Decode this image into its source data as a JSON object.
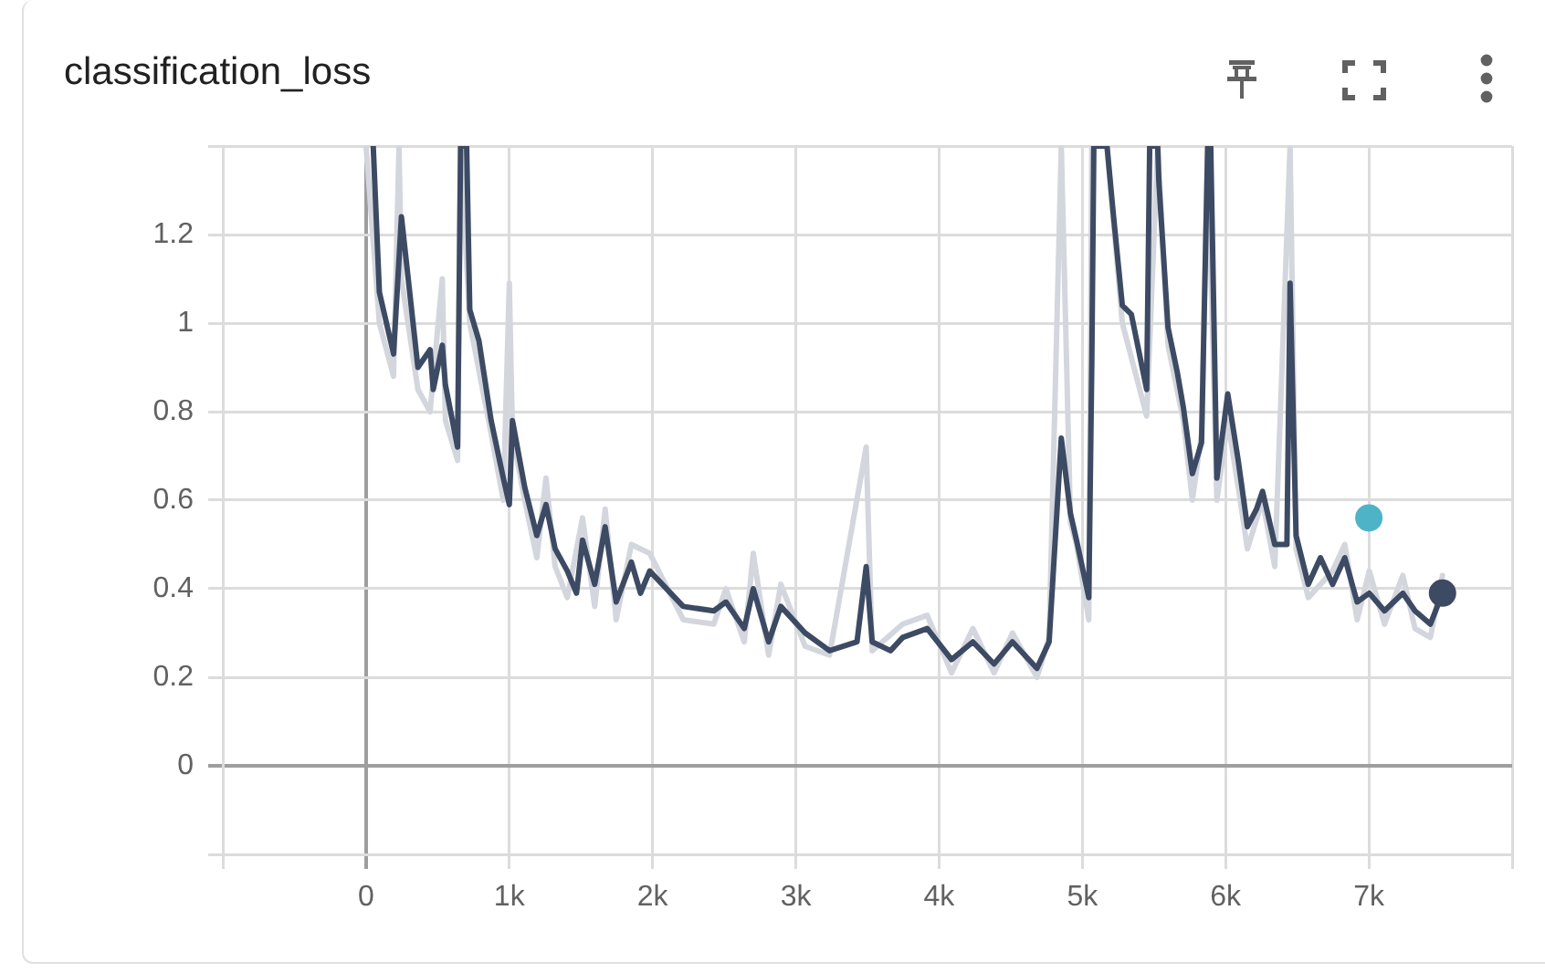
{
  "chart_data": {
    "type": "line",
    "title": "classification_loss",
    "xlim": [
      -1000,
      8000
    ],
    "xticks": [
      {
        "value": -1000,
        "label": null
      },
      0,
      {
        "value": 1000,
        "label": "1k"
      },
      {
        "value": 2000,
        "label": "2k"
      },
      {
        "value": 3000,
        "label": "3k"
      },
      {
        "value": 4000,
        "label": "4k"
      },
      {
        "value": 5000,
        "label": "5k"
      },
      {
        "value": 6000,
        "label": "6k"
      },
      {
        "value": 7000,
        "label": "7k"
      },
      {
        "value": 8000,
        "label": null
      }
    ],
    "ylim": [
      -0.2,
      1.4
    ],
    "yticks": [
      {
        "value": -0.2,
        "label": null
      },
      0,
      0.2,
      0.4,
      0.6,
      0.8,
      1,
      1.2,
      {
        "value": 1.4,
        "label": null
      }
    ],
    "grid": true,
    "legend": false,
    "marker": "none",
    "line_style": "solid",
    "series": [
      {
        "type": "line",
        "color": "#d3d6dd",
        "x": [
          0,
          93,
          192,
          230,
          247,
          362,
          447,
          532,
          554,
          639,
          660,
          724,
          873,
          958,
          1000,
          1022,
          1107,
          1192,
          1256,
          1320,
          1405,
          1511,
          1596,
          1669,
          1746,
          1852,
          1980,
          2214,
          2427,
          2512,
          2640,
          2703,
          2810,
          2895,
          3065,
          3235,
          3491,
          3533,
          3746,
          3917,
          4087,
          4236,
          4384,
          4512,
          4683,
          4768,
          4853,
          4917,
          4959,
          5045,
          5066,
          5172,
          5279,
          5449,
          5526,
          5598,
          5705,
          5768,
          5832,
          5875,
          5939,
          6015,
          6088,
          6152,
          6258,
          6343,
          6450,
          6492,
          6577,
          6747,
          6832,
          6918,
          7003,
          7109,
          7237,
          7322,
          7429,
          7514
        ],
        "values": [
          1.4,
          1.0,
          0.88,
          1.4,
          1.1,
          0.85,
          0.8,
          1.1,
          0.78,
          0.69,
          1.4,
          1.0,
          0.75,
          0.6,
          1.09,
          0.75,
          0.6,
          0.47,
          0.65,
          0.45,
          0.38,
          0.56,
          0.36,
          0.58,
          0.33,
          0.5,
          0.48,
          0.33,
          0.32,
          0.4,
          0.28,
          0.48,
          0.25,
          0.41,
          0.27,
          0.25,
          0.72,
          0.26,
          0.32,
          0.34,
          0.21,
          0.31,
          0.21,
          0.3,
          0.2,
          0.29,
          1.4,
          0.55,
          0.5,
          0.33,
          1.4,
          1.4,
          1.0,
          0.79,
          1.4,
          0.95,
          0.78,
          0.6,
          0.75,
          1.4,
          0.6,
          0.78,
          0.63,
          0.49,
          0.6,
          0.45,
          1.4,
          0.49,
          0.38,
          0.44,
          0.5,
          0.33,
          0.44,
          0.32,
          0.43,
          0.31,
          0.29,
          0.43
        ]
      },
      {
        "type": "line",
        "color": "#3d4a63",
        "x": [
          50,
          93,
          192,
          247,
          362,
          447,
          469,
          532,
          554,
          639,
          660,
          702,
          724,
          788,
          873,
          958,
          1000,
          1022,
          1107,
          1192,
          1256,
          1320,
          1405,
          1469,
          1511,
          1596,
          1669,
          1746,
          1852,
          1916,
          1980,
          2214,
          2427,
          2512,
          2640,
          2703,
          2810,
          2895,
          3065,
          3235,
          3427,
          3491,
          3533,
          3661,
          3746,
          3917,
          4087,
          4236,
          4384,
          4512,
          4683,
          4768,
          4853,
          4917,
          4959,
          5045,
          5066,
          5080,
          5172,
          5215,
          5279,
          5342,
          5449,
          5470,
          5526,
          5534,
          5598,
          5662,
          5705,
          5768,
          5832,
          5875,
          5896,
          5939,
          6015,
          6088,
          6152,
          6216,
          6258,
          6343,
          6428,
          6450,
          6492,
          6577,
          6662,
          6747,
          6832,
          6918,
          7003,
          7109,
          7237,
          7322,
          7429,
          7514
        ],
        "values": [
          1.4,
          1.07,
          0.93,
          1.24,
          0.9,
          0.94,
          0.85,
          0.95,
          0.86,
          0.72,
          1.4,
          1.4,
          1.03,
          0.96,
          0.78,
          0.65,
          0.59,
          0.78,
          0.63,
          0.52,
          0.59,
          0.49,
          0.44,
          0.39,
          0.51,
          0.41,
          0.54,
          0.37,
          0.46,
          0.39,
          0.44,
          0.36,
          0.35,
          0.37,
          0.31,
          0.4,
          0.28,
          0.36,
          0.3,
          0.26,
          0.28,
          0.45,
          0.28,
          0.26,
          0.29,
          0.31,
          0.24,
          0.28,
          0.23,
          0.28,
          0.22,
          0.28,
          0.74,
          0.57,
          0.51,
          0.38,
          0.91,
          1.4,
          1.4,
          1.25,
          1.04,
          1.02,
          0.85,
          1.4,
          1.4,
          1.32,
          0.99,
          0.89,
          0.81,
          0.66,
          0.73,
          1.4,
          1.4,
          0.65,
          0.84,
          0.69,
          0.54,
          0.58,
          0.62,
          0.5,
          0.5,
          1.09,
          0.52,
          0.41,
          0.47,
          0.41,
          0.47,
          0.37,
          0.39,
          0.35,
          0.39,
          0.35,
          0.32,
          0.39
        ]
      },
      {
        "type": "scatter",
        "color": "#3d4a63",
        "marker": "circle",
        "x": [
          7514
        ],
        "values": [
          0.39
        ]
      },
      {
        "type": "scatter",
        "color": "#4fb3c8",
        "marker": "circle",
        "x": [
          7000
        ],
        "values": [
          0.56
        ]
      }
    ]
  }
}
